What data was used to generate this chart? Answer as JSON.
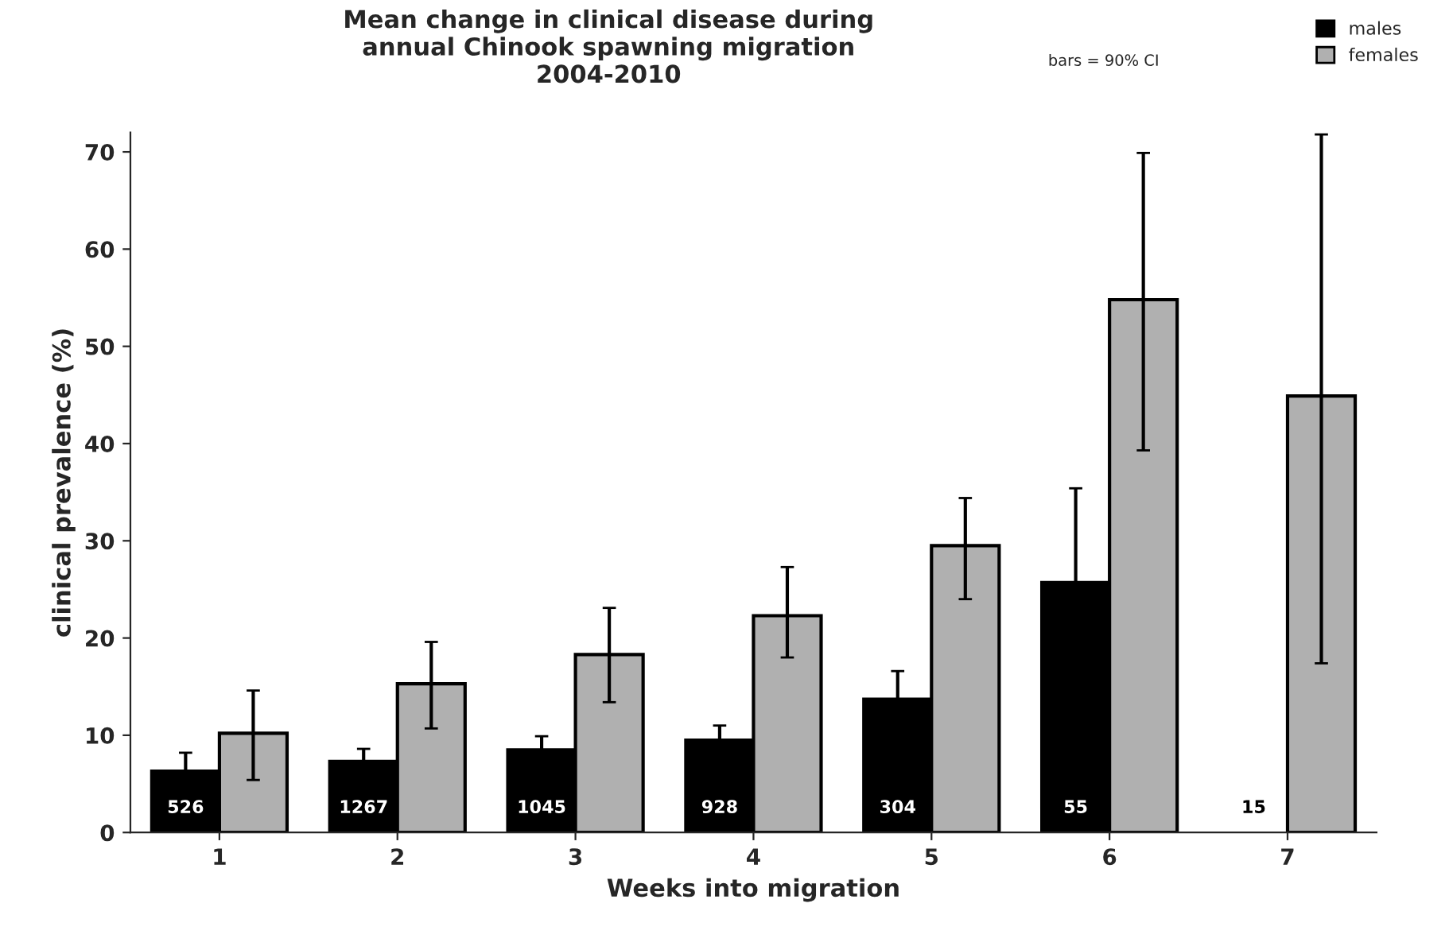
{
  "chart_data": {
    "type": "bar",
    "title": "Mean change in clinical disease during\nannual Chinook spawning migration\n2004-2010",
    "xlabel": "Weeks into migration",
    "ylabel": "clinical prevalence (%)",
    "categories": [
      "1",
      "2",
      "3",
      "4",
      "5",
      "6",
      "7"
    ],
    "series": [
      {
        "name": "males",
        "color": "#000000",
        "values": [
          6.3,
          7.3,
          8.5,
          9.5,
          13.7,
          25.7,
          null
        ],
        "errors": [
          1.9,
          1.3,
          1.4,
          1.5,
          2.9,
          9.7,
          null
        ]
      },
      {
        "name": "females",
        "color": "#b0b0b0",
        "values": [
          10.2,
          15.3,
          18.3,
          22.3,
          29.5,
          54.8,
          44.9
        ],
        "errors": [
          [
            5.4,
            14.6
          ],
          [
            10.7,
            19.6
          ],
          [
            13.4,
            23.1
          ],
          [
            18,
            27.3
          ],
          [
            24,
            34.4
          ],
          [
            39.3,
            69.9
          ],
          [
            17.4,
            71.8
          ]
        ]
      }
    ],
    "ylim": [
      0,
      72
    ],
    "yticks": [
      0,
      10,
      20,
      30,
      40,
      50,
      60,
      70
    ],
    "grid": false,
    "legend": "top right",
    "annotations": [
      "bars = 90% CI",
      {
        "text": "526",
        "x": "1",
        "y": 2.5
      },
      {
        "text": "1267",
        "x": "2",
        "y": 2.5
      },
      {
        "text": "1045",
        "x": "3",
        "y": 2.5
      },
      {
        "text": "928",
        "x": "4",
        "y": 2.5
      },
      {
        "text": "304",
        "x": "5",
        "y": 2.5
      },
      {
        "text": "55",
        "x": "6",
        "y": 2.5
      },
      {
        "text": "15",
        "x": "7",
        "y": 2.5
      }
    ]
  }
}
